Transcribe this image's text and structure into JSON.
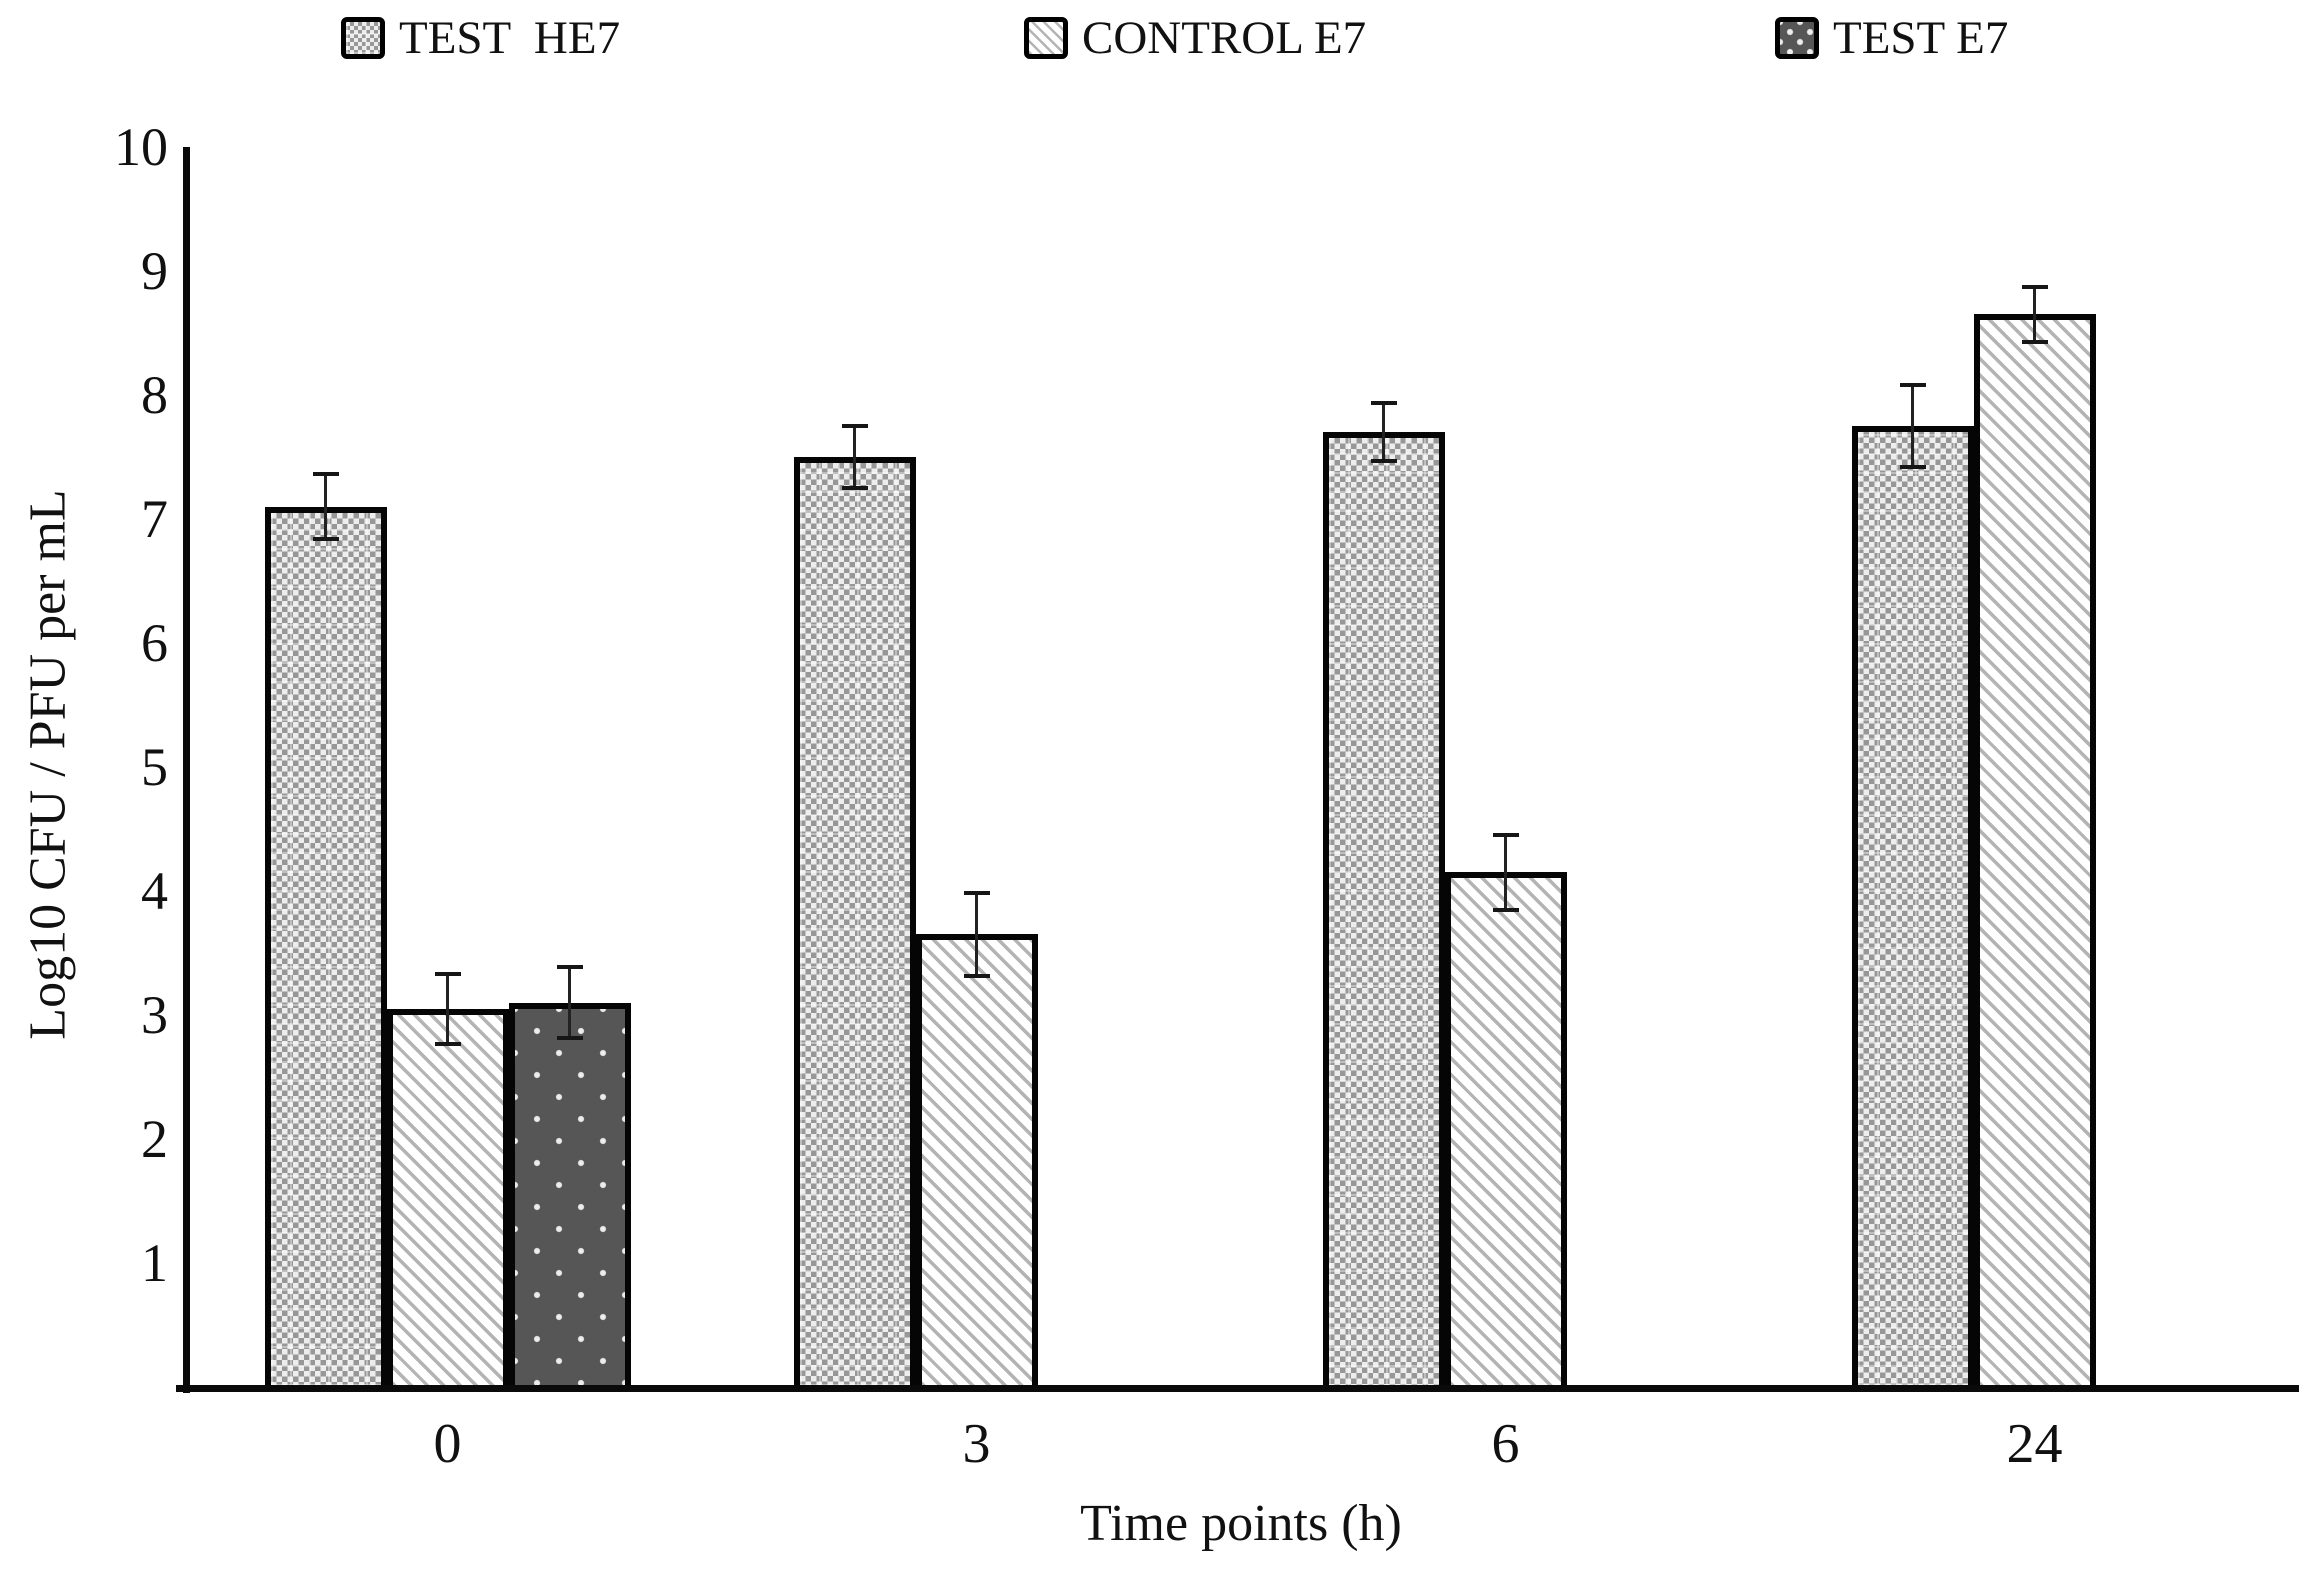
{
  "chart_data": {
    "type": "bar",
    "title": "",
    "xlabel": "Time points (h)",
    "ylabel": "Log10 CFU / PFU per mL",
    "ylim": [
      0,
      10
    ],
    "yticks": [
      1,
      2,
      3,
      4,
      5,
      6,
      7,
      8,
      9,
      10
    ],
    "grid": false,
    "legend_position": "top",
    "categories": [
      "0",
      "3",
      "6",
      "24"
    ],
    "series": [
      {
        "name": "TEST  HE7",
        "pattern": "checker",
        "values": [
          7.1,
          7.5,
          7.7,
          7.75
        ],
        "errors": [
          0.28,
          0.27,
          0.25,
          0.35
        ]
      },
      {
        "name": "CONTROL E7",
        "pattern": "diagonal",
        "values": [
          3.05,
          3.65,
          4.15,
          8.65
        ],
        "errors": [
          0.3,
          0.35,
          0.32,
          0.24
        ]
      },
      {
        "name": "TEST E7",
        "pattern": "dark-dots",
        "values": [
          3.1,
          null,
          null,
          null
        ],
        "errors": [
          0.3,
          null,
          null,
          null
        ]
      }
    ]
  },
  "legend": {
    "items": [
      {
        "label": "TEST  HE7",
        "swatch": "checker-pattern"
      },
      {
        "label": "CONTROL E7",
        "swatch": "diagonal-stripes-pattern"
      },
      {
        "label": "TEST E7",
        "swatch": "dark-dots-pattern"
      }
    ]
  },
  "colors": {
    "axis": "#0a0a0a",
    "bar_border": "#050505",
    "checker_gray": "#979797",
    "diagonal_gray": "#b4b4b4",
    "dark_fill": "#565656",
    "error_bar": "#222222",
    "background": "#ffffff"
  }
}
